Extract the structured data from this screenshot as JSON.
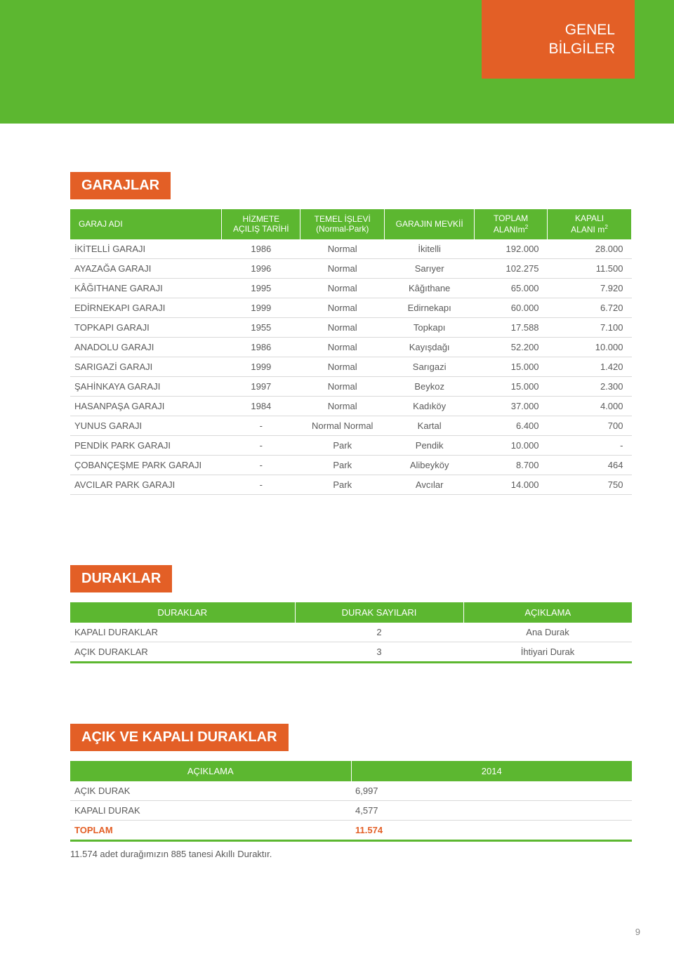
{
  "header": {
    "line1": "GENEL",
    "line2": "BİLGİLER"
  },
  "colors": {
    "green": "#5cb730",
    "orange": "#e35f26",
    "text": "#5a5a5a",
    "border": "#d9d9d9",
    "white": "#ffffff"
  },
  "garajlar": {
    "title": "GARAJLAR",
    "columns": [
      {
        "label": "GARAJ ADI",
        "width": "27%",
        "align": "left"
      },
      {
        "label": "HİZMETE\nAÇILIŞ TARİHİ",
        "width": "14%",
        "align": "center"
      },
      {
        "label": "TEMEL İŞLEVİ\n(Normal-Park)",
        "width": "15%",
        "align": "center"
      },
      {
        "label": "GARAJIN MEVKİİ",
        "width": "16%",
        "align": "center"
      },
      {
        "label": "TOPLAM\nALANIm²",
        "width": "13%",
        "align": "right"
      },
      {
        "label": "KAPALI\nALANI m²",
        "width": "15%",
        "align": "right"
      }
    ],
    "rows": [
      [
        "İKİTELLİ GARAJI",
        "1986",
        "Normal",
        "İkitelli",
        "192.000",
        "28.000"
      ],
      [
        "AYAZAĞA GARAJI",
        "1996",
        "Normal",
        "Sarıyer",
        "102.275",
        "11.500"
      ],
      [
        "KÂĞITHANE GARAJI",
        "1995",
        "Normal",
        "Kâğıthane",
        "65.000",
        "7.920"
      ],
      [
        "EDİRNEKAPI GARAJI",
        "1999",
        "Normal",
        "Edirnekapı",
        "60.000",
        "6.720"
      ],
      [
        "TOPKAPI GARAJI",
        "1955",
        "Normal",
        "Topkapı",
        "17.588",
        "7.100"
      ],
      [
        "ANADOLU GARAJI",
        "1986",
        "Normal",
        "Kayışdağı",
        "52.200",
        "10.000"
      ],
      [
        "SARIGAZİ GARAJI",
        "1999",
        "Normal",
        "Sarıgazi",
        "15.000",
        "1.420"
      ],
      [
        "ŞAHİNKAYA GARAJI",
        "1997",
        "Normal",
        "Beykoz",
        "15.000",
        "2.300"
      ],
      [
        "HASANPAŞA GARAJI",
        "1984",
        "Normal",
        "Kadıköy",
        "37.000",
        "4.000"
      ],
      [
        "YUNUS GARAJI",
        "-",
        "Normal Normal",
        "Kartal",
        "6.400",
        "700"
      ],
      [
        "PENDİK PARK GARAJI",
        "-",
        "Park",
        "Pendik",
        "10.000",
        "-"
      ],
      [
        "ÇOBANÇEŞME PARK GARAJI",
        "-",
        "Park",
        "Alibeyköy",
        "8.700",
        "464"
      ],
      [
        "AVCILAR PARK GARAJI",
        "-",
        "Park",
        "Avcılar",
        "14.000",
        "750"
      ]
    ],
    "fontsize": 13
  },
  "duraklar": {
    "title": "DURAKLAR",
    "columns": [
      "DURAKLAR",
      "DURAK SAYILARI",
      "AÇIKLAMA"
    ],
    "col_widths": [
      "40%",
      "30%",
      "30%"
    ],
    "rows": [
      [
        "KAPALI DURAKLAR",
        "2",
        "Ana Durak"
      ],
      [
        "AÇIK DURAKLAR",
        "3",
        "İhtiyari Durak"
      ]
    ]
  },
  "acik_kapali": {
    "title": "AÇIK VE KAPALI DURAKLAR",
    "columns": [
      "AÇIKLAMA",
      "2014"
    ],
    "col_widths": [
      "50%",
      "50%"
    ],
    "rows": [
      [
        "AÇIK DURAK",
        "6,997"
      ],
      [
        "KAPALI DURAK",
        "4,577"
      ]
    ],
    "total": [
      "TOPLAM",
      "11.574"
    ],
    "footnote": "11.574 adet durağımızın 885 tanesi Akıllı Duraktır."
  },
  "page_number": "9"
}
